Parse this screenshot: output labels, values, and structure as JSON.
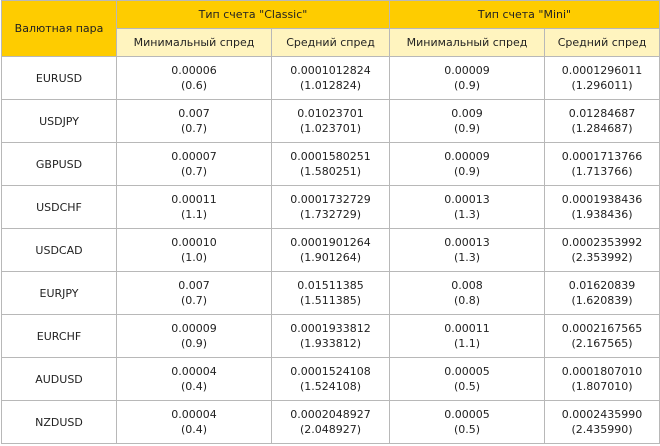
{
  "table": {
    "pair_header": "Валютная пара",
    "classic_header": "Тип счета \"Classic\"",
    "mini_header": "Тип счета \"Mini\"",
    "sub_headers": [
      "Минимальный спред",
      "Средний спред",
      "Минимальный спред",
      "Средний спред"
    ],
    "rows": [
      {
        "pair": "EURUSD",
        "classic_min": "0.00006",
        "classic_min_pts": "(0.6)",
        "classic_avg": "0.0001012824",
        "classic_avg_pts": "(1.012824)",
        "mini_min": "0.00009",
        "mini_min_pts": "(0.9)",
        "mini_avg": "0.0001296011",
        "mini_avg_pts": "(1.296011)"
      },
      {
        "pair": "USDJPY",
        "classic_min": "0.007",
        "classic_min_pts": "(0.7)",
        "classic_avg": "0.01023701",
        "classic_avg_pts": "(1.023701)",
        "mini_min": "0.009",
        "mini_min_pts": "(0.9)",
        "mini_avg": "0.01284687",
        "mini_avg_pts": "(1.284687)"
      },
      {
        "pair": "GBPUSD",
        "classic_min": "0.00007",
        "classic_min_pts": "(0.7)",
        "classic_avg": "0.0001580251",
        "classic_avg_pts": "(1.580251)",
        "mini_min": "0.00009",
        "mini_min_pts": "(0.9)",
        "mini_avg": "0.0001713766",
        "mini_avg_pts": "(1.713766)"
      },
      {
        "pair": "USDCHF",
        "classic_min": "0.00011",
        "classic_min_pts": "(1.1)",
        "classic_avg": "0.0001732729",
        "classic_avg_pts": "(1.732729)",
        "mini_min": "0.00013",
        "mini_min_pts": "(1.3)",
        "mini_avg": "0.0001938436",
        "mini_avg_pts": "(1.938436)"
      },
      {
        "pair": "USDCAD",
        "classic_min": "0.00010",
        "classic_min_pts": "(1.0)",
        "classic_avg": "0.0001901264",
        "classic_avg_pts": "(1.901264)",
        "mini_min": "0.00013",
        "mini_min_pts": "(1.3)",
        "mini_avg": "0.0002353992",
        "mini_avg_pts": "(2.353992)"
      },
      {
        "pair": "EURJPY",
        "classic_min": "0.007",
        "classic_min_pts": "(0.7)",
        "classic_avg": "0.01511385",
        "classic_avg_pts": "(1.511385)",
        "mini_min": "0.008",
        "mini_min_pts": "(0.8)",
        "mini_avg": "0.01620839",
        "mini_avg_pts": "(1.620839)"
      },
      {
        "pair": "EURCHF",
        "classic_min": "0.00009",
        "classic_min_pts": "(0.9)",
        "classic_avg": "0.0001933812",
        "classic_avg_pts": "(1.933812)",
        "mini_min": "0.00011",
        "mini_min_pts": "(1.1)",
        "mini_avg": "0.0002167565",
        "mini_avg_pts": "(2.167565)"
      },
      {
        "pair": "AUDUSD",
        "classic_min": "0.00004",
        "classic_min_pts": "(0.4)",
        "classic_avg": "0.0001524108",
        "classic_avg_pts": "(1.524108)",
        "mini_min": "0.00005",
        "mini_min_pts": "(0.5)",
        "mini_avg": "0.0001807010",
        "mini_avg_pts": "(1.807010)"
      },
      {
        "pair": "NZDUSD",
        "classic_min": "0.00004",
        "classic_min_pts": "(0.4)",
        "classic_avg": "0.0002048927",
        "classic_avg_pts": "(2.048927)",
        "mini_min": "0.00005",
        "mini_min_pts": "(0.5)",
        "mini_avg": "0.0002435990",
        "mini_avg_pts": "(2.435990)"
      }
    ]
  },
  "colors": {
    "header_accent": "#fecc00",
    "subheader_bg": "#fff4bf",
    "border": "#b8b8b8"
  }
}
